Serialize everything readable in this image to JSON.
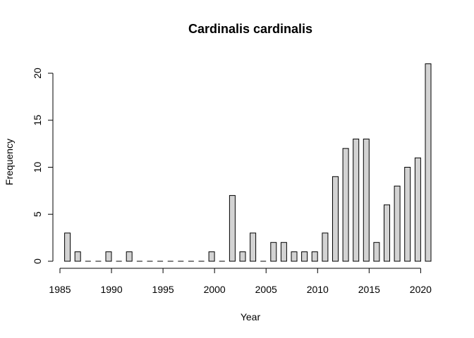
{
  "chart_data": {
    "type": "bar",
    "title": "Cardinalis cardinalis",
    "xlabel": "Year",
    "ylabel": "Frequency",
    "xlim": [
      1985,
      2021
    ],
    "ylim": [
      0,
      21
    ],
    "xticks": [
      1985,
      1990,
      1995,
      2000,
      2005,
      2010,
      2015,
      2020
    ],
    "yticks": [
      0,
      5,
      10,
      15,
      20
    ],
    "bar_color": "#d3d3d3",
    "x": [
      1986,
      1987,
      1988,
      1989,
      1990,
      1991,
      1992,
      1993,
      1994,
      1995,
      1996,
      1997,
      1998,
      1999,
      2000,
      2001,
      2002,
      2003,
      2004,
      2005,
      2006,
      2007,
      2008,
      2009,
      2010,
      2011,
      2012,
      2013,
      2014,
      2015,
      2016,
      2017,
      2018,
      2019,
      2020,
      2021
    ],
    "values": [
      3,
      1,
      0,
      0,
      1,
      0,
      1,
      0,
      0,
      0,
      0,
      0,
      0,
      0,
      1,
      0,
      7,
      1,
      3,
      0,
      2,
      2,
      1,
      1,
      1,
      3,
      9,
      12,
      13,
      13,
      2,
      6,
      8,
      10,
      11,
      21
    ]
  }
}
